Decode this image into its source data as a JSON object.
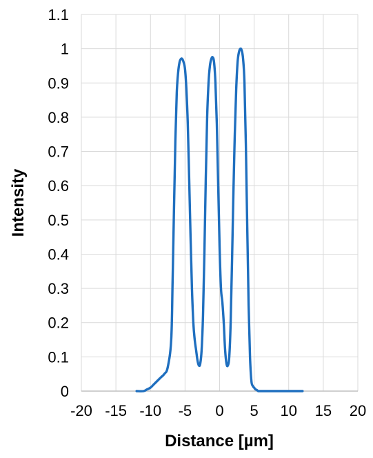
{
  "chart_data": {
    "type": "line",
    "title": "",
    "xlabel": "Distance [µm]",
    "ylabel": "Intensity",
    "xlim": [
      -20,
      20
    ],
    "ylim": [
      0,
      1.1
    ],
    "x_ticks": [
      -20,
      -15,
      -10,
      -5,
      0,
      5,
      10,
      15,
      20
    ],
    "y_ticks": [
      0,
      0.1,
      0.2,
      0.3,
      0.4,
      0.5,
      0.6,
      0.7,
      0.8,
      0.9,
      1,
      1.1
    ],
    "grid": true,
    "legend": "none",
    "colors": {
      "line": "#1f6fbf",
      "grid": "#d9d9d9",
      "axis": "#bfbfbf"
    },
    "series": [
      {
        "x": [
          -12.0,
          -11.0,
          -10.5,
          -10.0,
          -9.5,
          -9.0,
          -8.5,
          -8.0,
          -7.5,
          -7.0,
          -6.8,
          -6.6,
          -6.4,
          -6.2,
          -6.0,
          -5.8,
          -5.6,
          -5.4,
          -5.2,
          -5.0,
          -4.8,
          -4.6,
          -4.4,
          -4.2,
          -4.0,
          -3.8,
          -3.6,
          -3.4,
          -3.2,
          -3.0,
          -2.8,
          -2.6,
          -2.4,
          -2.2,
          -2.0,
          -1.8,
          -1.6,
          -1.4,
          -1.2,
          -1.0,
          -0.8,
          -0.6,
          -0.4,
          -0.2,
          0.0,
          0.2,
          0.4,
          0.6,
          0.8,
          1.0,
          1.2,
          1.4,
          1.6,
          1.8,
          2.0,
          2.2,
          2.4,
          2.6,
          2.8,
          3.0,
          3.2,
          3.4,
          3.6,
          3.8,
          4.0,
          4.2,
          4.4,
          4.6,
          4.8,
          5.0,
          5.2,
          5.4,
          5.6,
          5.8,
          6.0,
          6.2,
          6.4,
          6.6,
          6.8,
          7.0,
          7.2,
          7.5,
          8.0,
          8.5,
          9.0,
          10.0,
          11.0,
          12.0
        ],
        "y": [
          0.0,
          0.0,
          0.005,
          0.01,
          0.02,
          0.03,
          0.04,
          0.05,
          0.07,
          0.15,
          0.32,
          0.53,
          0.73,
          0.87,
          0.93,
          0.96,
          0.97,
          0.97,
          0.96,
          0.94,
          0.88,
          0.78,
          0.62,
          0.45,
          0.3,
          0.2,
          0.15,
          0.12,
          0.09,
          0.075,
          0.08,
          0.12,
          0.22,
          0.4,
          0.62,
          0.8,
          0.9,
          0.95,
          0.97,
          0.975,
          0.96,
          0.9,
          0.78,
          0.6,
          0.42,
          0.3,
          0.26,
          0.2,
          0.12,
          0.08,
          0.075,
          0.1,
          0.2,
          0.38,
          0.58,
          0.75,
          0.88,
          0.96,
          0.99,
          1.0,
          0.995,
          0.97,
          0.9,
          0.72,
          0.48,
          0.25,
          0.1,
          0.03,
          0.015,
          0.01,
          0.005,
          0.003,
          0.0,
          0.0,
          0.0,
          0.0,
          0.0,
          0.0,
          0.0,
          0.0,
          0.0,
          0.0,
          0.0,
          0.0,
          0.0,
          0.0,
          0.0,
          0.0
        ]
      }
    ]
  }
}
